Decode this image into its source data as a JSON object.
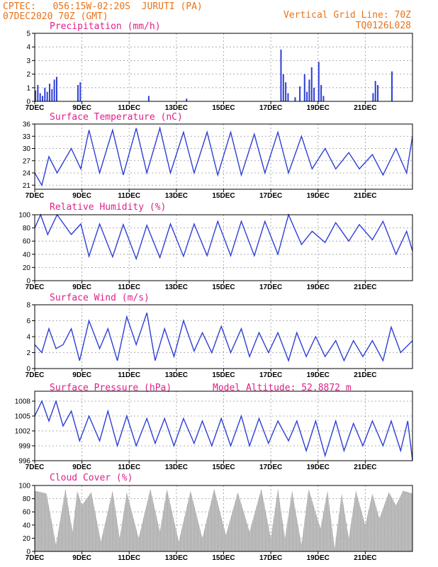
{
  "header": {
    "line1_left": "CPTEC:   056:15W-02:20S  JURUTI (PA)",
    "line2_left": "07DEC2020 70Z (GMT)",
    "line1_right": "Vertical Grid Line: 70Z",
    "line2_right": "TQ0126L028"
  },
  "colors": {
    "series": "#2e3fd6",
    "cloud": "#a8a8a8",
    "title": "#e0208a",
    "header": "#e8731a"
  },
  "chart_data": [
    {
      "type": "bar",
      "title": "Precipitation (mm/h)",
      "x_ticks": [
        "7DEC",
        "9DEC",
        "11DEC",
        "13DEC",
        "15DEC",
        "17DEC",
        "19DEC",
        "21DEC"
      ],
      "ylim": [
        0,
        5
      ],
      "y_ticks": [
        0,
        1,
        2,
        3,
        4,
        5
      ],
      "x_days": [
        0.0,
        0.1,
        0.2,
        0.3,
        0.4,
        0.5,
        0.6,
        0.7,
        0.8,
        0.9,
        1.8,
        1.9,
        4.8,
        6.4,
        10.4,
        10.5,
        10.6,
        10.7,
        11.0,
        11.2,
        11.4,
        11.5,
        11.6,
        11.7,
        11.8,
        12.0,
        12.1,
        12.2,
        14.3,
        14.4,
        14.5,
        15.1
      ],
      "values": [
        0.8,
        1.2,
        0.6,
        0.4,
        1.0,
        0.7,
        1.3,
        0.9,
        1.6,
        1.8,
        1.2,
        1.4,
        0.4,
        0.2,
        3.8,
        2.0,
        1.4,
        0.6,
        0.3,
        1.1,
        2.0,
        0.7,
        1.6,
        2.5,
        1.0,
        2.9,
        1.2,
        0.4,
        0.6,
        1.5,
        1.2,
        2.2
      ]
    },
    {
      "type": "line",
      "title": "Surface Temperature (nC)",
      "x_ticks": [
        "7DEC",
        "9DEC",
        "11DEC",
        "13DEC",
        "15DEC",
        "17DEC",
        "19DEC",
        "21DEC"
      ],
      "ylim": [
        20,
        36
      ],
      "y_ticks": [
        21,
        24,
        27,
        30,
        33,
        36
      ],
      "x_days": [
        0,
        0.3,
        0.6,
        0.95,
        1.55,
        1.95,
        2.3,
        2.75,
        3.3,
        3.75,
        4.3,
        4.75,
        5.3,
        5.75,
        6.3,
        6.75,
        7.3,
        7.75,
        8.3,
        8.75,
        9.3,
        9.75,
        10.3,
        10.75,
        11.3,
        11.75,
        12.3,
        12.75,
        13.3,
        13.75,
        14.3,
        14.75,
        15.3,
        15.75,
        16.0
      ],
      "values": [
        24,
        21,
        28,
        24,
        30,
        25,
        34.5,
        24,
        34.5,
        23.5,
        35,
        24,
        35,
        24,
        34,
        24,
        34,
        23.5,
        34,
        23.5,
        33.5,
        24,
        34,
        24,
        33,
        25,
        30,
        25,
        29,
        25,
        28.5,
        23.5,
        30,
        24,
        33
      ]
    },
    {
      "type": "line",
      "title": "Relative Humidity (%)",
      "x_ticks": [
        "7DEC",
        "9DEC",
        "11DEC",
        "13DEC",
        "15DEC",
        "17DEC",
        "19DEC",
        "21DEC"
      ],
      "ylim": [
        0,
        100
      ],
      "y_ticks": [
        0,
        20,
        40,
        60,
        80,
        100
      ],
      "x_days": [
        0,
        0.25,
        0.55,
        0.95,
        1.55,
        1.95,
        2.3,
        2.75,
        3.3,
        3.75,
        4.3,
        4.75,
        5.3,
        5.75,
        6.3,
        6.75,
        7.3,
        7.75,
        8.3,
        8.75,
        9.3,
        9.75,
        10.3,
        10.75,
        11.3,
        11.75,
        12.3,
        12.75,
        13.3,
        13.75,
        14.3,
        14.75,
        15.3,
        15.75,
        16.0
      ],
      "values": [
        80,
        100,
        70,
        100,
        70,
        86,
        37,
        86,
        36,
        85,
        33,
        84,
        35,
        86,
        37,
        86,
        38,
        90,
        38,
        90,
        38,
        90,
        40,
        100,
        55,
        75,
        58,
        88,
        60,
        85,
        62,
        90,
        40,
        75,
        45
      ]
    },
    {
      "type": "line",
      "title": "Surface Wind (m/s)",
      "x_ticks": [
        "7DEC",
        "9DEC",
        "11DEC",
        "13DEC",
        "15DEC",
        "17DEC",
        "19DEC",
        "21DEC"
      ],
      "ylim": [
        0,
        8
      ],
      "y_ticks": [
        0,
        2,
        4,
        6,
        8
      ],
      "x_days": [
        0,
        0.3,
        0.6,
        0.9,
        1.2,
        1.55,
        1.9,
        2.3,
        2.75,
        3.1,
        3.5,
        3.9,
        4.3,
        4.75,
        5.1,
        5.5,
        5.9,
        6.3,
        6.75,
        7.1,
        7.5,
        7.9,
        8.3,
        8.75,
        9.1,
        9.5,
        9.9,
        10.3,
        10.75,
        11.1,
        11.5,
        11.9,
        12.3,
        12.75,
        13.1,
        13.5,
        13.9,
        14.3,
        14.75,
        15.1,
        15.5,
        16.0
      ],
      "values": [
        3,
        2,
        5,
        2.5,
        3,
        5,
        1,
        6,
        2.5,
        5,
        1,
        6.5,
        3,
        7,
        1,
        5,
        1.5,
        6,
        2.2,
        4.5,
        2,
        5.3,
        2,
        5,
        1.5,
        4.5,
        2,
        4.5,
        1,
        4.5,
        1.5,
        4,
        1.5,
        3.5,
        1,
        3.5,
        1.5,
        3.5,
        1,
        5.2,
        2,
        3.5
      ]
    },
    {
      "type": "line",
      "title": "Surface Pressure (hPa)",
      "annotation": "Model Altitude: 52.8872 m",
      "x_ticks": [
        "7DEC",
        "9DEC",
        "11DEC",
        "13DEC",
        "15DEC",
        "17DEC",
        "19DEC",
        "21DEC"
      ],
      "ylim": [
        996,
        1010
      ],
      "y_ticks": [
        996,
        999,
        1002,
        1005,
        1008
      ],
      "x_days": [
        0,
        0.3,
        0.6,
        0.9,
        1.2,
        1.55,
        1.9,
        2.3,
        2.75,
        3.1,
        3.5,
        3.9,
        4.3,
        4.75,
        5.1,
        5.5,
        5.9,
        6.3,
        6.75,
        7.1,
        7.5,
        7.9,
        8.3,
        8.75,
        9.1,
        9.5,
        9.9,
        10.3,
        10.75,
        11.1,
        11.5,
        11.9,
        12.3,
        12.75,
        13.1,
        13.5,
        13.9,
        14.3,
        14.75,
        15.1,
        15.5,
        15.8,
        16.0
      ],
      "values": [
        1005,
        1008,
        1004,
        1008,
        1003,
        1006,
        1000,
        1005,
        1000,
        1006,
        999,
        1005,
        999,
        1004.5,
        999.5,
        1004.5,
        999,
        1004.5,
        999.5,
        1004,
        999,
        1004.5,
        999,
        1005,
        999,
        1004.5,
        999.5,
        1004,
        1000,
        1004,
        998,
        1004,
        997,
        1004,
        998,
        1003.5,
        999,
        1004,
        999,
        1004,
        998,
        1004,
        996
      ]
    },
    {
      "type": "area",
      "title": "Cloud Cover (%)",
      "x_ticks": [
        "7DEC",
        "9DEC",
        "11DEC",
        "13DEC",
        "15DEC",
        "17DEC",
        "19DEC",
        "21DEC"
      ],
      "ylim": [
        0,
        100
      ],
      "y_ticks": [
        0,
        20,
        40,
        60,
        80,
        100
      ],
      "x_days": [
        0,
        0.5,
        0.9,
        1.3,
        1.6,
        1.8,
        2.0,
        2.4,
        2.8,
        3.3,
        3.6,
        3.9,
        4.4,
        4.9,
        5.3,
        5.6,
        6.1,
        6.6,
        7.1,
        7.6,
        8.1,
        8.6,
        9.1,
        9.6,
        10.0,
        10.3,
        10.6,
        10.9,
        11.3,
        11.6,
        12.1,
        12.4,
        12.7,
        13.0,
        13.3,
        13.6,
        14.0,
        14.3,
        14.6,
        15.0,
        15.3,
        15.6,
        16.0
      ],
      "values": [
        92,
        88,
        10,
        95,
        30,
        92,
        70,
        90,
        15,
        92,
        20,
        90,
        20,
        95,
        30,
        95,
        15,
        92,
        20,
        95,
        25,
        90,
        30,
        95,
        20,
        95,
        20,
        92,
        10,
        95,
        35,
        92,
        5,
        88,
        20,
        92,
        40,
        88,
        50,
        90,
        70,
        92,
        88
      ]
    }
  ]
}
